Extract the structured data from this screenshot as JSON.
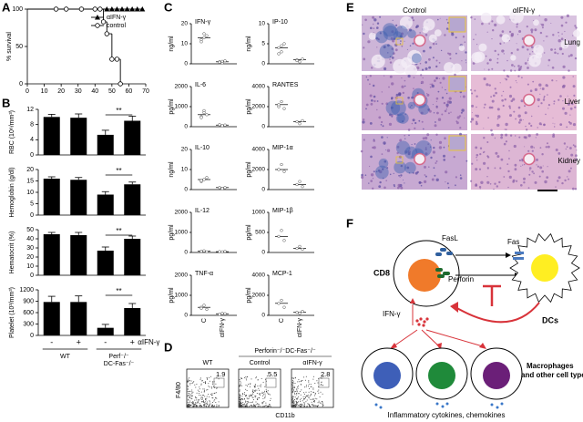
{
  "panel_labels": [
    "A",
    "B",
    "C",
    "D",
    "E",
    "F"
  ],
  "chart_data": [
    {
      "type": "survival",
      "ylabel": "% survival",
      "xlim": [
        0,
        70
      ],
      "xticks": [
        0,
        10,
        20,
        30,
        40,
        50,
        60,
        70
      ],
      "ylim": [
        0,
        100
      ],
      "yticks": [
        0,
        50,
        100
      ],
      "series": [
        {
          "name": "αIFN-γ",
          "color": "#000000",
          "marker": "triangle",
          "x": [
            0,
            47,
            50,
            53,
            56,
            59,
            62,
            65,
            68
          ],
          "values": [
            100,
            100,
            100,
            100,
            100,
            100,
            100,
            100,
            100
          ]
        },
        {
          "name": "control",
          "color": "#000000",
          "marker": "circle",
          "x": [
            0,
            17,
            23,
            32,
            40,
            43,
            45,
            47,
            50,
            53,
            55
          ],
          "values": [
            100,
            100,
            100,
            100,
            100,
            100,
            83,
            67,
            33,
            33,
            0
          ]
        }
      ]
    },
    {
      "type": "bar",
      "ylabel": "RBC (10⁶/mm³)",
      "values": [
        10,
        9.8,
        5.3,
        9
      ],
      "errors": [
        0.7,
        1,
        1.2,
        1.2
      ],
      "ylim": [
        0,
        12
      ],
      "yticks": [
        0,
        4,
        8,
        12
      ],
      "annotation": "**",
      "color": "#000000"
    },
    {
      "type": "bar",
      "ylabel": "Hemoglobin (g/dl)",
      "values": [
        16,
        15.5,
        9,
        13.5
      ],
      "errors": [
        0.8,
        1,
        1.3,
        1
      ],
      "ylim": [
        0,
        20
      ],
      "yticks": [
        0,
        5,
        10,
        15,
        20
      ],
      "annotation": "**",
      "color": "#000000"
    },
    {
      "type": "bar",
      "ylabel": "Hematocrit (%)",
      "values": [
        45,
        44,
        27,
        40
      ],
      "errors": [
        2,
        3,
        4,
        3
      ],
      "ylim": [
        0,
        50
      ],
      "yticks": [
        0,
        10,
        20,
        30,
        40,
        50
      ],
      "annotation": "**",
      "color": "#000000"
    },
    {
      "type": "bar",
      "ylabel": "Platelet (10³/mm³)",
      "values": [
        880,
        880,
        200,
        720
      ],
      "errors": [
        150,
        160,
        90,
        120
      ],
      "ylim": [
        0,
        1200
      ],
      "yticks": [
        0,
        300,
        600,
        900,
        1200
      ],
      "annotation": "**",
      "color": "#000000"
    },
    {
      "type": "dot",
      "title": "IFN-γ",
      "ylabel": "ng/ml",
      "ylim": [
        0,
        20
      ],
      "yticks": [
        0,
        10,
        20
      ],
      "series": [
        {
          "values": [
            12,
            13,
            14,
            11,
            15
          ]
        },
        {
          "values": [
            1,
            0.5,
            1.5,
            0.8,
            1.2
          ]
        }
      ]
    },
    {
      "type": "dot",
      "title": "IP-10",
      "ylabel": "ng/ml",
      "ylim": [
        0,
        10
      ],
      "yticks": [
        0,
        5,
        10
      ],
      "series": [
        {
          "values": [
            4,
            3,
            5,
            2.5,
            4.5
          ]
        },
        {
          "values": [
            1,
            0.5,
            1.2,
            0.8
          ]
        }
      ]
    },
    {
      "type": "dot",
      "title": "IL-6",
      "ylabel": "pg/ml",
      "ylim": [
        0,
        2000
      ],
      "yticks": [
        0,
        1000,
        2000
      ],
      "series": [
        {
          "values": [
            500,
            700,
            600,
            450,
            800
          ]
        },
        {
          "values": [
            100,
            50,
            80
          ]
        }
      ]
    },
    {
      "type": "dot",
      "title": "RANTES",
      "ylabel": "pg/ml",
      "ylim": [
        0,
        4000
      ],
      "yticks": [
        0,
        2000,
        4000
      ],
      "series": [
        {
          "values": [
            2000,
            2500,
            1800,
            2200
          ]
        },
        {
          "values": [
            500,
            300,
            600
          ]
        }
      ]
    },
    {
      "type": "dot",
      "title": "IL-10",
      "ylabel": "ng/ml",
      "ylim": [
        0,
        20
      ],
      "yticks": [
        0,
        10,
        20
      ],
      "series": [
        {
          "values": [
            4,
            5,
            6,
            4.5
          ]
        },
        {
          "values": [
            1,
            0.5,
            1
          ]
        }
      ]
    },
    {
      "type": "dot",
      "title": "MIP-1α",
      "ylabel": "pg/ml",
      "ylim": [
        0,
        4000
      ],
      "yticks": [
        0,
        2000,
        4000
      ],
      "series": [
        {
          "values": [
            2000,
            2500,
            1800
          ]
        },
        {
          "values": [
            500,
            800,
            300
          ]
        }
      ]
    },
    {
      "type": "dot",
      "title": "IL-12",
      "ylabel": "pg/ml",
      "ylim": [
        0,
        2000
      ],
      "yticks": [
        0,
        1000,
        2000
      ],
      "series": [
        {
          "values": [
            50,
            80,
            30,
            60
          ]
        },
        {
          "values": [
            40,
            30,
            60
          ]
        }
      ]
    },
    {
      "type": "dot",
      "title": "MIP-1β",
      "ylabel": "pg/ml",
      "ylim": [
        0,
        1000
      ],
      "yticks": [
        0,
        500,
        1000
      ],
      "series": [
        {
          "values": [
            400,
            550,
            300
          ]
        },
        {
          "values": [
            100,
            150,
            80
          ]
        }
      ]
    },
    {
      "type": "dot",
      "title": "TNF-α",
      "ylabel": "pg/ml",
      "ylim": [
        0,
        2000
      ],
      "yticks": [
        0,
        1000,
        2000
      ],
      "series": [
        {
          "values": [
            400,
            500,
            300,
            350
          ]
        },
        {
          "values": [
            50,
            100,
            80
          ]
        }
      ]
    },
    {
      "type": "dot",
      "title": "MCP-1",
      "ylabel": "pg/ml",
      "ylim": [
        0,
        4000
      ],
      "yticks": [
        0,
        2000,
        4000
      ],
      "series": [
        {
          "values": [
            1200,
            1500,
            800
          ]
        },
        {
          "values": [
            300,
            200,
            400
          ]
        }
      ]
    }
  ],
  "panel_b": {
    "categories": [
      "-",
      "+",
      "-",
      "+"
    ],
    "treatment": "αIFN-γ",
    "groups": [
      "WT",
      "Perf⁻/⁻",
      "DC-Fas⁻/⁻"
    ]
  },
  "panel_c": {
    "groups": [
      "C",
      "αIFN-γ"
    ]
  },
  "panel_d": {
    "header": "Perforin⁻/⁻DC-Fas⁻/⁻",
    "xlabel": "CD11b",
    "ylabel": "F4/80",
    "plots": [
      {
        "title": "WT",
        "value": 1.9
      },
      {
        "title": "Control",
        "value": 5.5
      },
      {
        "title": "αIFN-γ",
        "value": 2.8
      }
    ]
  },
  "panel_e": {
    "columns": [
      "Control",
      "αIFN-γ"
    ],
    "rows": [
      "Lung",
      "Liver",
      "Kidney"
    ]
  },
  "panel_f": {
    "cd8": "CD8",
    "fasl": "FasL",
    "perforin": "Perforin",
    "fas": "Fas",
    "dcs": "DCs",
    "ifn": "IFN-γ",
    "macrophages": [
      "Macrophages",
      "and other cell types"
    ],
    "cytokines": "Inflammatory cytokines, chemokines"
  }
}
